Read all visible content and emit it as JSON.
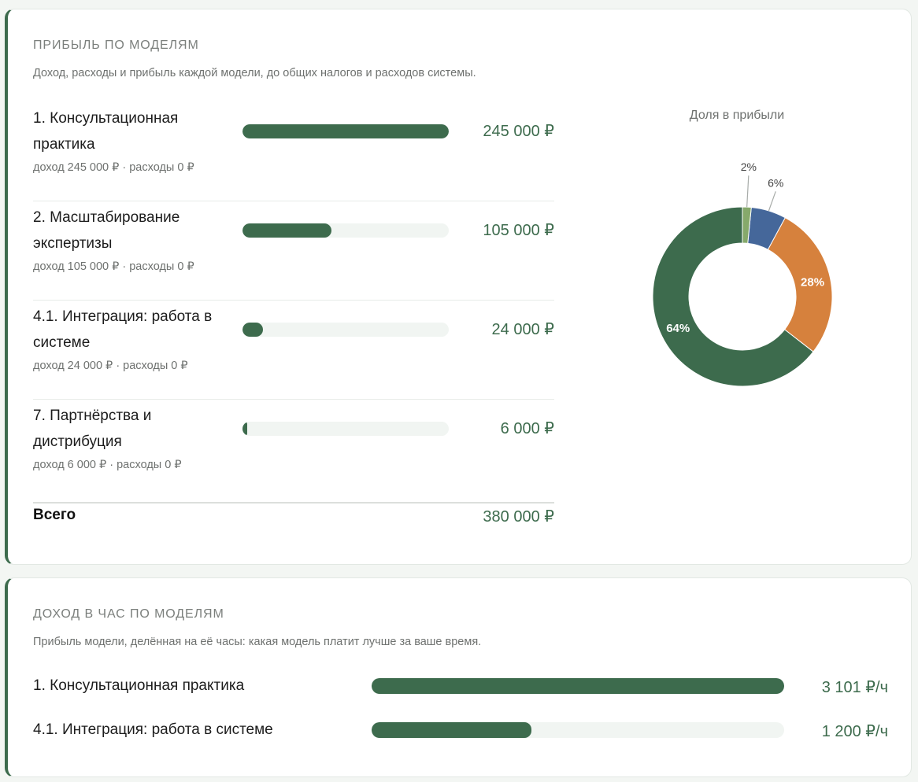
{
  "profit": {
    "title": "ПРИБЫЛЬ ПО МОДЕЛЯМ",
    "subtitle": "Доход, расходы и прибыль каждой модели, до общих налогов и расходов системы.",
    "rows": [
      {
        "name": "1. Консультационная практика",
        "value": "245 000 ₽",
        "detail": "доход 245 000 ₽ · расходы 0 ₽",
        "fraction": 1.0
      },
      {
        "name": "2. Масштабирование экспертизы",
        "value": "105 000 ₽",
        "detail": "доход 105 000 ₽ · расходы 0 ₽",
        "fraction": 0.43
      },
      {
        "name": "4.1. Интеграция: работа в системе",
        "value": "24 000 ₽",
        "detail": "доход 24 000 ₽ · расходы 0 ₽",
        "fraction": 0.098
      },
      {
        "name": "7. Партнёрства и дистрибуция",
        "value": "6 000 ₽",
        "detail": "доход 6 000 ₽ · расходы 0 ₽",
        "fraction": 0.024
      }
    ],
    "total_label": "Всего",
    "total_value": "380 000 ₽"
  },
  "hourly": {
    "title": "ДОХОД В ЧАС ПО МОДЕЛЯМ",
    "subtitle": "Прибыль модели, делённая на её часы: какая модель платит лучше за ваше время.",
    "rows": [
      {
        "name": "1. Консультационная практика",
        "value": "3 101 ₽/ч",
        "fraction": 1.0
      },
      {
        "name": "4.1. Интеграция: работа в системе",
        "value": "1 200 ₽/ч",
        "fraction": 0.387
      }
    ]
  },
  "chart_data": {
    "type": "pie",
    "title": "Доля в прибыли",
    "slices": [
      {
        "label": "64%",
        "value": 245000,
        "color": "#3d6b4d"
      },
      {
        "label": "28%",
        "value": 105000,
        "color": "#d6813d"
      },
      {
        "label": "6%",
        "value": 24000,
        "color": "#45679a"
      },
      {
        "label": "2%",
        "value": 6000,
        "color": "#86a96b"
      }
    ]
  },
  "colors": {
    "accent": "#3d6b4d",
    "track": "#f1f5f2"
  }
}
